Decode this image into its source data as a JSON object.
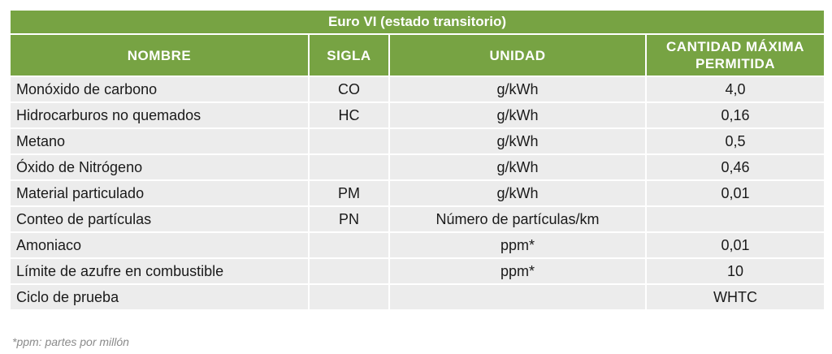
{
  "title": "Euro VI (estado transitorio)",
  "headers": {
    "nombre": "NOMBRE",
    "sigla": "SIGLA",
    "unidad": "UNIDAD",
    "cantidad_line1": "CANTIDAD MÁXIMA",
    "cantidad_line2": "PERMITIDA"
  },
  "rows": [
    {
      "nombre": "Monóxido de carbono",
      "sigla": "CO",
      "unidad": "g/kWh",
      "cantidad": "4,0"
    },
    {
      "nombre": "Hidrocarburos no quemados",
      "sigla": "HC",
      "unidad": "g/kWh",
      "cantidad": "0,16"
    },
    {
      "nombre": "Metano",
      "sigla": "",
      "unidad": "g/kWh",
      "cantidad": "0,5"
    },
    {
      "nombre": "Óxido de Nitrógeno",
      "sigla": "",
      "unidad": "g/kWh",
      "cantidad": "0,46"
    },
    {
      "nombre": "Material particulado",
      "sigla": "PM",
      "unidad": "g/kWh",
      "cantidad": "0,01"
    },
    {
      "nombre": "Conteo de partículas",
      "sigla": "PN",
      "unidad": "Número de partículas/km",
      "cantidad": ""
    },
    {
      "nombre": "Amoniaco",
      "sigla": "",
      "unidad": "ppm*",
      "cantidad": "0,01"
    },
    {
      "nombre": "Límite de azufre en combustible",
      "sigla": "",
      "unidad": "ppm*",
      "cantidad": "10"
    },
    {
      "nombre": "Ciclo de prueba",
      "sigla": "",
      "unidad": "",
      "cantidad": "WHTC"
    }
  ],
  "footnote": "*ppm: partes por millón",
  "colors": {
    "header_green": "#77a343",
    "row_gray": "#ececec",
    "footnote_gray": "#8a8a8a"
  }
}
